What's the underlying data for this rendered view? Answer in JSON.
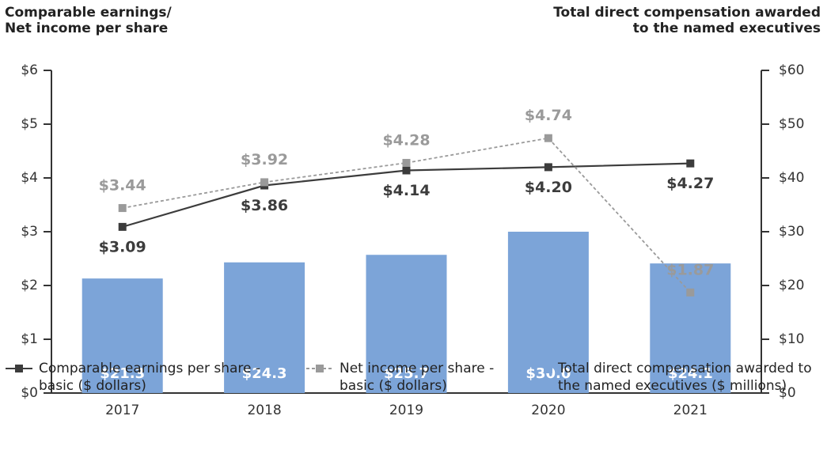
{
  "chart_data": {
    "type": "bar-line",
    "y_label": "Comparable earnings/ Net income per share",
    "y2_label": "Total direct compensation awarded to the named executives",
    "categories": [
      "2017",
      "2018",
      "2019",
      "2020",
      "2021"
    ],
    "ylim": [
      0,
      6
    ],
    "yticks": [
      {
        "value": 0,
        "label": "$0"
      },
      {
        "value": 1,
        "label": "$1"
      },
      {
        "value": 2,
        "label": "$2"
      },
      {
        "value": 3,
        "label": "$3"
      },
      {
        "value": 4,
        "label": "$4"
      },
      {
        "value": 5,
        "label": "$5"
      },
      {
        "value": 6,
        "label": "$6"
      }
    ],
    "y2lim": [
      0,
      60
    ],
    "y2ticks": [
      {
        "value": 0,
        "label": "$0"
      },
      {
        "value": 10,
        "label": "$10"
      },
      {
        "value": 20,
        "label": "$20"
      },
      {
        "value": 30,
        "label": "$30"
      },
      {
        "value": 40,
        "label": "$40"
      },
      {
        "value": 50,
        "label": "$50"
      },
      {
        "value": 60,
        "label": "$60"
      }
    ],
    "grid": false,
    "series": [
      {
        "name": "Comparable earnings per share - basic ($ dollars)",
        "type": "line",
        "color": "#3c3c3c",
        "dashed": false,
        "values": [
          3.09,
          3.86,
          4.14,
          4.2,
          4.27
        ],
        "value_labels": [
          "$3.09",
          "$3.86",
          "$4.14",
          "$4.20",
          "$4.27"
        ],
        "label_position": "below"
      },
      {
        "name": "Net income per share - basic ($ dollars)",
        "type": "line",
        "color": "#9a9a9a",
        "dashed": true,
        "values": [
          3.44,
          3.92,
          4.28,
          4.74,
          1.87
        ],
        "value_labels": [
          "$3.44",
          "$3.92",
          "$4.28",
          "$4.74",
          "$1.87"
        ],
        "label_position": "above"
      },
      {
        "name": "Total direct compensation awarded to the named executives ($ millions)",
        "type": "bar",
        "axis": "y2",
        "color": "#7ca4d8",
        "values": [
          21.3,
          24.3,
          25.7,
          30.0,
          24.1
        ],
        "value_labels": [
          "$21.3",
          "$24.3",
          "$25.7",
          "$30.0",
          "$24.1"
        ]
      }
    ]
  }
}
